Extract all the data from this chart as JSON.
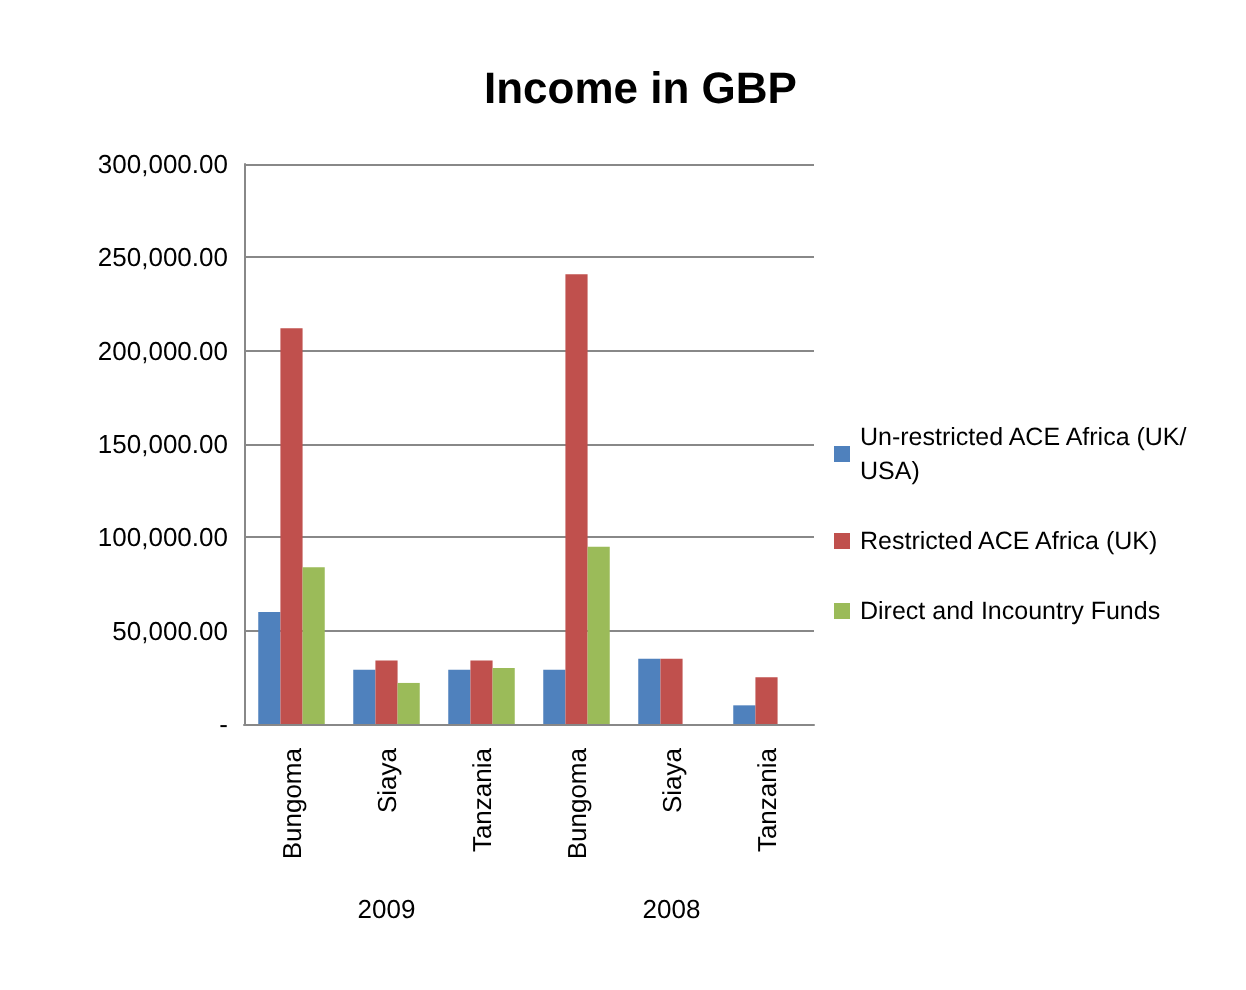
{
  "chart_data": {
    "type": "bar",
    "title": "Income in GBP",
    "categories": [
      "Bungoma",
      "Siaya",
      "Tanzania",
      "Bungoma",
      "Siaya",
      "Tanzania"
    ],
    "annotations": [
      "2009",
      "2008"
    ],
    "series": [
      {
        "name": "Un-restricted ACE Africa (UK/USA)",
        "color": "#4f81bd",
        "values": [
          60000,
          29000,
          29000,
          29000,
          35000,
          10000
        ]
      },
      {
        "name": "Restricted ACE Africa (UK)",
        "color": "#c0504d",
        "values": [
          212000,
          34000,
          34000,
          241000,
          35000,
          25000
        ]
      },
      {
        "name": "Direct and Incountry Funds",
        "color": "#9bbb59",
        "values": [
          84000,
          22000,
          30000,
          95000,
          null,
          null
        ]
      }
    ],
    "ylim": [
      0,
      300000
    ],
    "yticks": [
      {
        "value": 0,
        "label": "-"
      },
      {
        "value": 50000,
        "label": "50,000.00"
      },
      {
        "value": 100000,
        "label": "100,000.00"
      },
      {
        "value": 150000,
        "label": "150,000.00"
      },
      {
        "value": 200000,
        "label": "200,000.00"
      },
      {
        "value": 250000,
        "label": "250,000.00"
      },
      {
        "value": 300000,
        "label": "300,000.00"
      }
    ],
    "grid": "y",
    "legend": "right"
  }
}
